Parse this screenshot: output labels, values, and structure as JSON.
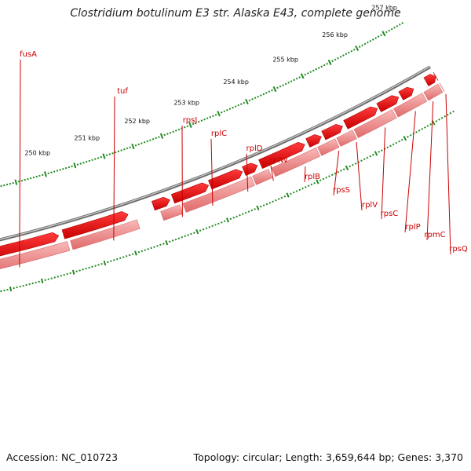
{
  "title": "Clostridium botulinum E3 str. Alaska E43, complete genome",
  "footer": {
    "accession": "Accession: NC_010723",
    "summary": "Topology: circular; Length: 3,659,644 bp; Genes: 3,370"
  },
  "colors": {
    "gene_forward": "#f07f7f",
    "gene_reverse": "#ee0000",
    "backbone": "#808080",
    "ticks": "#228b22",
    "label": "#cc0000"
  },
  "genes": [
    {
      "name": "fusA"
    },
    {
      "name": "tuf"
    },
    {
      "name": "rpsJ"
    },
    {
      "name": "rplC"
    },
    {
      "name": "rplD"
    },
    {
      "name": "rplW"
    },
    {
      "name": "rplB"
    },
    {
      "name": "rpsS"
    },
    {
      "name": "rplV"
    },
    {
      "name": "rpsC"
    },
    {
      "name": "rplP"
    },
    {
      "name": "rpmC"
    },
    {
      "name": "rpsQ"
    }
  ],
  "scale_labels": [
    "250 kbp",
    "251 kbp",
    "252 kbp",
    "253 kbp",
    "254 kbp",
    "255 kbp",
    "256 kbp",
    "257 kbp"
  ]
}
